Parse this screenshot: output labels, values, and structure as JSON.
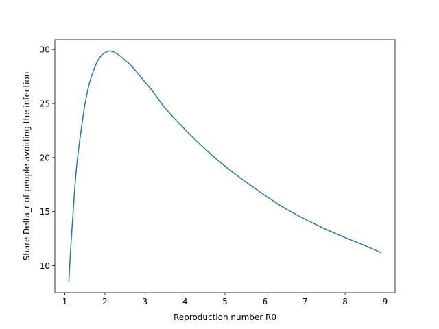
{
  "chart_data": {
    "type": "line",
    "title": "",
    "xlabel": "Reproduction number R0",
    "ylabel": "Share Delta_r of people avoiding the infection",
    "xlim": [
      0.75,
      9.25
    ],
    "ylim": [
      7.5,
      30.9
    ],
    "xticks": [
      1,
      2,
      3,
      4,
      5,
      6,
      7,
      8,
      9
    ],
    "yticks": [
      10,
      15,
      20,
      25,
      30
    ],
    "grid": false,
    "legend": "none",
    "colors": {
      "line": "#1f77b4",
      "axes": "#000000",
      "background": "#ffffff"
    },
    "series": [
      {
        "x": [
          1.1,
          1.15,
          1.2,
          1.25,
          1.3,
          1.35,
          1.4,
          1.45,
          1.5,
          1.6,
          1.7,
          1.8,
          1.9,
          2.0,
          2.1,
          2.2,
          2.3,
          2.4,
          2.5,
          2.6,
          2.8,
          3.0,
          3.2,
          3.5,
          4.0,
          4.5,
          5.0,
          5.5,
          6.0,
          6.5,
          7.0,
          7.5,
          8.0,
          8.5,
          8.9
        ],
        "y": [
          8.5,
          11.9,
          14.6,
          17.3,
          19.4,
          21.0,
          22.4,
          23.7,
          24.9,
          26.7,
          27.9,
          28.8,
          29.4,
          29.7,
          29.85,
          29.8,
          29.6,
          29.35,
          29.0,
          28.7,
          27.9,
          27.0,
          26.1,
          24.6,
          22.6,
          20.8,
          19.2,
          17.8,
          16.5,
          15.3,
          14.3,
          13.4,
          12.6,
          11.85,
          11.2
        ]
      }
    ]
  }
}
